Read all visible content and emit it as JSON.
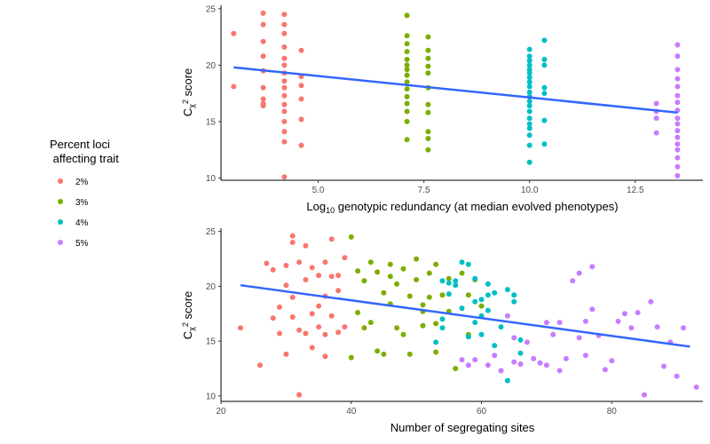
{
  "legend": {
    "title_line1": "Percent loci",
    "title_line2": " affecting trait",
    "entries": [
      {
        "label": "2%",
        "color": "#F8766D"
      },
      {
        "label": "3%",
        "color": "#7CAE00"
      },
      {
        "label": "4%",
        "color": "#00BFC4"
      },
      {
        "label": "5%",
        "color": "#C77CFF"
      }
    ]
  },
  "chart_data": [
    {
      "type": "scatter",
      "xlabel_prefix": "Log",
      "xlabel_sub": "10",
      "xlabel_suffix": " genotypic redundancy (at median evolved phenotypes)",
      "ylabel_prefix": "C",
      "ylabel_sub": "χ",
      "ylabel_sup": "2",
      "ylabel_suffix": " score",
      "xlim": [
        2.7,
        14.1
      ],
      "ylim": [
        9.8,
        25.3
      ],
      "xticks": [
        5.0,
        7.5,
        10.0,
        12.5
      ],
      "xtick_labels": [
        "5.0",
        "7.5",
        "10.0",
        "12.5"
      ],
      "yticks": [
        10,
        15,
        20,
        25
      ],
      "ytick_labels": [
        "10",
        "15",
        "20",
        "25"
      ],
      "fit_line": {
        "x": [
          3.0,
          13.5
        ],
        "y": [
          19.8,
          15.8
        ],
        "color": "#3366FF"
      },
      "series": [
        {
          "color": "#F8766D",
          "points": [
            [
              3.0,
              22.8
            ],
            [
              3.0,
              18.1
            ],
            [
              3.7,
              24.6
            ],
            [
              3.7,
              23.6
            ],
            [
              3.7,
              22.1
            ],
            [
              3.7,
              20.8
            ],
            [
              3.7,
              19.5
            ],
            [
              3.7,
              18.0
            ],
            [
              3.7,
              17.0
            ],
            [
              3.7,
              16.6
            ],
            [
              3.7,
              16.4
            ],
            [
              4.2,
              24.5
            ],
            [
              4.2,
              23.6
            ],
            [
              4.2,
              22.8
            ],
            [
              4.2,
              21.6
            ],
            [
              4.2,
              20.6
            ],
            [
              4.2,
              20.0
            ],
            [
              4.2,
              19.3
            ],
            [
              4.2,
              18.6
            ],
            [
              4.2,
              18.0
            ],
            [
              4.2,
              17.3
            ],
            [
              4.2,
              16.5
            ],
            [
              4.2,
              15.9
            ],
            [
              4.2,
              15.0
            ],
            [
              4.2,
              14.1
            ],
            [
              4.2,
              13.2
            ],
            [
              4.2,
              10.1
            ],
            [
              4.6,
              21.3
            ],
            [
              4.6,
              19.0
            ],
            [
              4.6,
              18.2
            ],
            [
              4.6,
              17.0
            ],
            [
              4.6,
              15.2
            ],
            [
              4.6,
              12.9
            ]
          ]
        },
        {
          "color": "#7CAE00",
          "points": [
            [
              7.1,
              24.4
            ],
            [
              7.1,
              22.6
            ],
            [
              7.1,
              21.9
            ],
            [
              7.1,
              21.2
            ],
            [
              7.1,
              20.5
            ],
            [
              7.1,
              20.0
            ],
            [
              7.1,
              19.6
            ],
            [
              7.1,
              19.1
            ],
            [
              7.1,
              18.5
            ],
            [
              7.1,
              17.9
            ],
            [
              7.1,
              17.2
            ],
            [
              7.1,
              16.6
            ],
            [
              7.1,
              15.9
            ],
            [
              7.1,
              15.0
            ],
            [
              7.1,
              13.4
            ],
            [
              7.6,
              22.5
            ],
            [
              7.6,
              21.3
            ],
            [
              7.6,
              20.6
            ],
            [
              7.6,
              19.9
            ],
            [
              7.6,
              19.3
            ],
            [
              7.6,
              18.0
            ],
            [
              7.6,
              16.5
            ],
            [
              7.6,
              15.8
            ],
            [
              7.6,
              14.1
            ],
            [
              7.6,
              13.5
            ],
            [
              7.6,
              12.5
            ]
          ]
        },
        {
          "color": "#00BFC4",
          "points": [
            [
              10.0,
              21.4
            ],
            [
              10.0,
              20.8
            ],
            [
              10.0,
              20.4
            ],
            [
              10.0,
              20.0
            ],
            [
              10.0,
              19.6
            ],
            [
              10.0,
              19.3
            ],
            [
              10.0,
              18.9
            ],
            [
              10.0,
              18.5
            ],
            [
              10.0,
              18.1
            ],
            [
              10.0,
              17.6
            ],
            [
              10.0,
              17.2
            ],
            [
              10.0,
              16.8
            ],
            [
              10.0,
              16.4
            ],
            [
              10.0,
              15.9
            ],
            [
              10.0,
              15.3
            ],
            [
              10.0,
              14.8
            ],
            [
              10.0,
              14.4
            ],
            [
              10.0,
              13.8
            ],
            [
              10.0,
              12.9
            ],
            [
              10.0,
              11.4
            ],
            [
              10.35,
              22.2
            ],
            [
              10.35,
              20.5
            ],
            [
              10.35,
              20.0
            ],
            [
              10.35,
              18.0
            ],
            [
              10.35,
              17.5
            ],
            [
              10.35,
              15.1
            ],
            [
              10.35,
              13.0
            ]
          ]
        },
        {
          "color": "#C77CFF",
          "points": [
            [
              13.0,
              16.6
            ],
            [
              13.0,
              15.9
            ],
            [
              13.0,
              15.3
            ],
            [
              13.0,
              14.0
            ],
            [
              13.5,
              21.8
            ],
            [
              13.5,
              20.8
            ],
            [
              13.5,
              19.6
            ],
            [
              13.5,
              18.8
            ],
            [
              13.5,
              18.1
            ],
            [
              13.5,
              17.3
            ],
            [
              13.5,
              16.7
            ],
            [
              13.5,
              16.0
            ],
            [
              13.5,
              15.3
            ],
            [
              13.5,
              14.8
            ],
            [
              13.5,
              14.2
            ],
            [
              13.5,
              13.6
            ],
            [
              13.5,
              13.0
            ],
            [
              13.5,
              12.5
            ],
            [
              13.5,
              11.8
            ],
            [
              13.5,
              11.0
            ],
            [
              13.5,
              10.2
            ]
          ]
        }
      ]
    },
    {
      "type": "scatter",
      "xlabel": "Number of segregating sites",
      "ylabel_prefix": "C",
      "ylabel_sub": "χ",
      "ylabel_sup": "2",
      "ylabel_suffix": " score",
      "xlim": [
        20,
        94
      ],
      "ylim": [
        9.5,
        25.3
      ],
      "xticks": [
        20,
        40,
        60,
        80
      ],
      "xtick_labels": [
        "20",
        "40",
        "60",
        "80"
      ],
      "yticks": [
        10,
        15,
        20,
        25
      ],
      "ytick_labels": [
        "10",
        "15",
        "20",
        "25"
      ],
      "fit_line": {
        "x": [
          23,
          92
        ],
        "y": [
          20.1,
          14.5
        ],
        "color": "#3366FF"
      },
      "series": [
        {
          "color": "#F8766D",
          "points": [
            [
              23,
              16.2
            ],
            [
              26,
              12.8
            ],
            [
              27,
              22.1
            ],
            [
              28,
              17.1
            ],
            [
              28,
              21.5
            ],
            [
              29,
              18.1
            ],
            [
              29,
              15.7
            ],
            [
              30,
              20.1
            ],
            [
              30,
              13.8
            ],
            [
              30,
              21.9
            ],
            [
              31,
              24.6
            ],
            [
              31,
              17.2
            ],
            [
              31,
              19.0
            ],
            [
              32,
              10.1
            ],
            [
              32,
              22.2
            ],
            [
              32,
              16.0
            ],
            [
              33,
              20.6
            ],
            [
              33,
              15.7
            ],
            [
              33,
              23.7
            ],
            [
              34,
              17.5
            ],
            [
              34,
              14.4
            ],
            [
              35,
              18.2
            ],
            [
              35,
              21.0
            ],
            [
              35,
              16.3
            ],
            [
              36,
              19.1
            ],
            [
              36,
              13.6
            ],
            [
              36,
              22.2
            ],
            [
              37,
              24.3
            ],
            [
              37,
              17.3
            ],
            [
              37,
              20.9
            ],
            [
              38,
              15.8
            ],
            [
              38,
              19.6
            ],
            [
              39,
              22.6
            ],
            [
              39,
              16.3
            ],
            [
              31,
              24.0
            ],
            [
              34,
              21.7
            ],
            [
              36,
              15.6
            ],
            [
              38,
              21.0
            ]
          ]
        },
        {
          "color": "#7CAE00",
          "points": [
            [
              40,
              24.5
            ],
            [
              40,
              13.5
            ],
            [
              41,
              21.4
            ],
            [
              41,
              17.6
            ],
            [
              42,
              20.5
            ],
            [
              43,
              22.2
            ],
            [
              43,
              16.7
            ],
            [
              44,
              21.3
            ],
            [
              44,
              14.1
            ],
            [
              45,
              19.4
            ],
            [
              45,
              13.8
            ],
            [
              46,
              22.0
            ],
            [
              46,
              18.4
            ],
            [
              47,
              20.2
            ],
            [
              47,
              16.2
            ],
            [
              48,
              21.6
            ],
            [
              48,
              15.6
            ],
            [
              49,
              19.1
            ],
            [
              49,
              13.8
            ],
            [
              50,
              22.5
            ],
            [
              50,
              20.6
            ],
            [
              51,
              17.7
            ],
            [
              51,
              16.4
            ],
            [
              51,
              18.3
            ],
            [
              52,
              21.2
            ],
            [
              52,
              19.0
            ],
            [
              53,
              22.0
            ],
            [
              53,
              16.6
            ],
            [
              53,
              14.0
            ],
            [
              54,
              19.2
            ],
            [
              55,
              17.7
            ],
            [
              55,
              20.7
            ],
            [
              56,
              12.5
            ],
            [
              57,
              21.2
            ],
            [
              58,
              19.2
            ],
            [
              58,
              15.6
            ],
            [
              59,
              20.6
            ],
            [
              60,
              18.2
            ],
            [
              42,
              16.2
            ],
            [
              46,
              20.9
            ]
          ]
        },
        {
          "color": "#00BFC4",
          "points": [
            [
              53,
              14.9
            ],
            [
              54,
              20.5
            ],
            [
              54,
              17.0
            ],
            [
              55,
              19.3
            ],
            [
              55,
              20.3
            ],
            [
              56,
              20.1
            ],
            [
              57,
              22.2
            ],
            [
              57,
              18.0
            ],
            [
              58,
              22.0
            ],
            [
              58,
              15.4
            ],
            [
              59,
              18.6
            ],
            [
              59,
              16.7
            ],
            [
              59,
              20.7
            ],
            [
              60,
              18.8
            ],
            [
              60,
              15.6
            ],
            [
              60,
              17.3
            ],
            [
              61,
              19.2
            ],
            [
              61,
              17.8
            ],
            [
              62,
              14.6
            ],
            [
              62,
              19.4
            ],
            [
              63,
              16.3
            ],
            [
              64,
              11.4
            ],
            [
              64,
              19.7
            ],
            [
              65,
              18.6
            ],
            [
              65,
              19.2
            ],
            [
              66,
              15.1
            ],
            [
              66,
              13.9
            ],
            [
              56,
              20.5
            ],
            [
              61,
              20.2
            ],
            [
              54,
              16.2
            ]
          ]
        },
        {
          "color": "#C77CFF",
          "points": [
            [
              57,
              13.3
            ],
            [
              58,
              12.8
            ],
            [
              59,
              13.3
            ],
            [
              61,
              12.8
            ],
            [
              62,
              13.7
            ],
            [
              63,
              12.3
            ],
            [
              64,
              17.3
            ],
            [
              65,
              15.3
            ],
            [
              65,
              13.1
            ],
            [
              66,
              12.9
            ],
            [
              67,
              14.9
            ],
            [
              68,
              13.4
            ],
            [
              69,
              13.0
            ],
            [
              70,
              16.7
            ],
            [
              70,
              12.8
            ],
            [
              71,
              15.6
            ],
            [
              72,
              16.7
            ],
            [
              72,
              12.3
            ],
            [
              73,
              13.4
            ],
            [
              74,
              20.5
            ],
            [
              75,
              21.2
            ],
            [
              75,
              15.3
            ],
            [
              76,
              16.8
            ],
            [
              76,
              13.7
            ],
            [
              77,
              21.8
            ],
            [
              77,
              17.9
            ],
            [
              78,
              15.5
            ],
            [
              79,
              12.4
            ],
            [
              80,
              13.2
            ],
            [
              81,
              16.8
            ],
            [
              82,
              17.5
            ],
            [
              83,
              16.2
            ],
            [
              84,
              17.6
            ],
            [
              85,
              10.1
            ],
            [
              86,
              18.6
            ],
            [
              87,
              16.3
            ],
            [
              88,
              12.7
            ],
            [
              89,
              14.9
            ],
            [
              90,
              11.8
            ],
            [
              91,
              16.2
            ],
            [
              93,
              10.8
            ]
          ]
        }
      ]
    }
  ]
}
